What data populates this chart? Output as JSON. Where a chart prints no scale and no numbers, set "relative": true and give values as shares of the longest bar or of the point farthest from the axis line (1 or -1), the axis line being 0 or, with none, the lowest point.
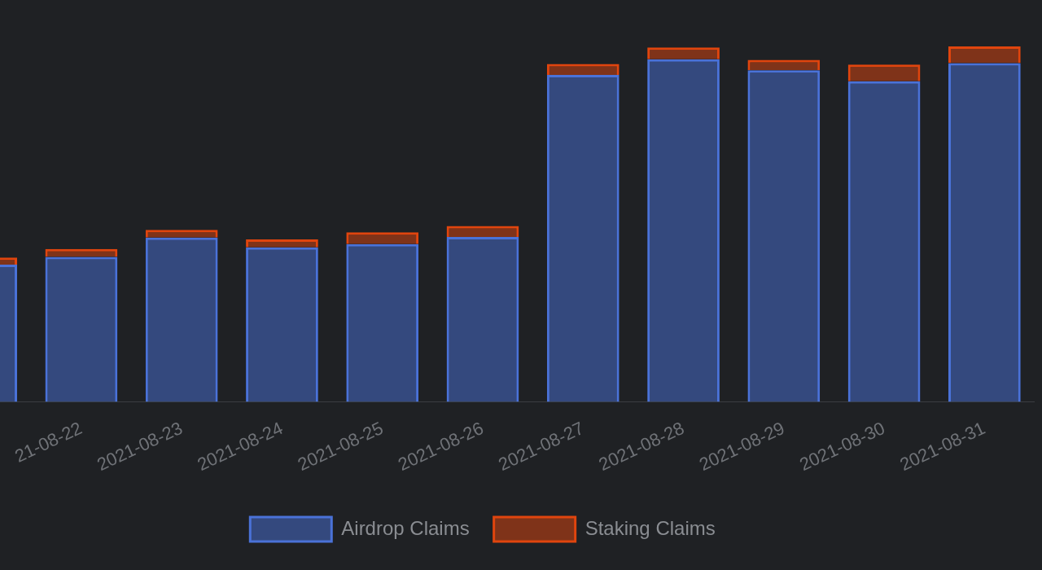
{
  "chart_data": {
    "type": "bar",
    "stacked": true,
    "relative": true,
    "legend": "bottom",
    "categories": [
      null,
      "21-08-22",
      "2021-08-23",
      "2021-08-24",
      "2021-08-25",
      "2021-08-26",
      "2021-08-27",
      "2021-08-28",
      "2021-08-29",
      "2021-08-30",
      "2021-08-31"
    ],
    "series": [
      {
        "name": "Airdrop Claims",
        "color": "#4a72d8",
        "values": [
          0.386,
          0.408,
          0.462,
          0.435,
          0.444,
          0.464,
          0.92,
          0.964,
          0.933,
          0.902,
          0.953
        ]
      },
      {
        "name": "Staking Claims",
        "color": "#e0450e",
        "values": [
          0.02,
          0.022,
          0.022,
          0.022,
          0.033,
          0.031,
          0.031,
          0.033,
          0.029,
          0.047,
          0.047
        ]
      }
    ]
  }
}
